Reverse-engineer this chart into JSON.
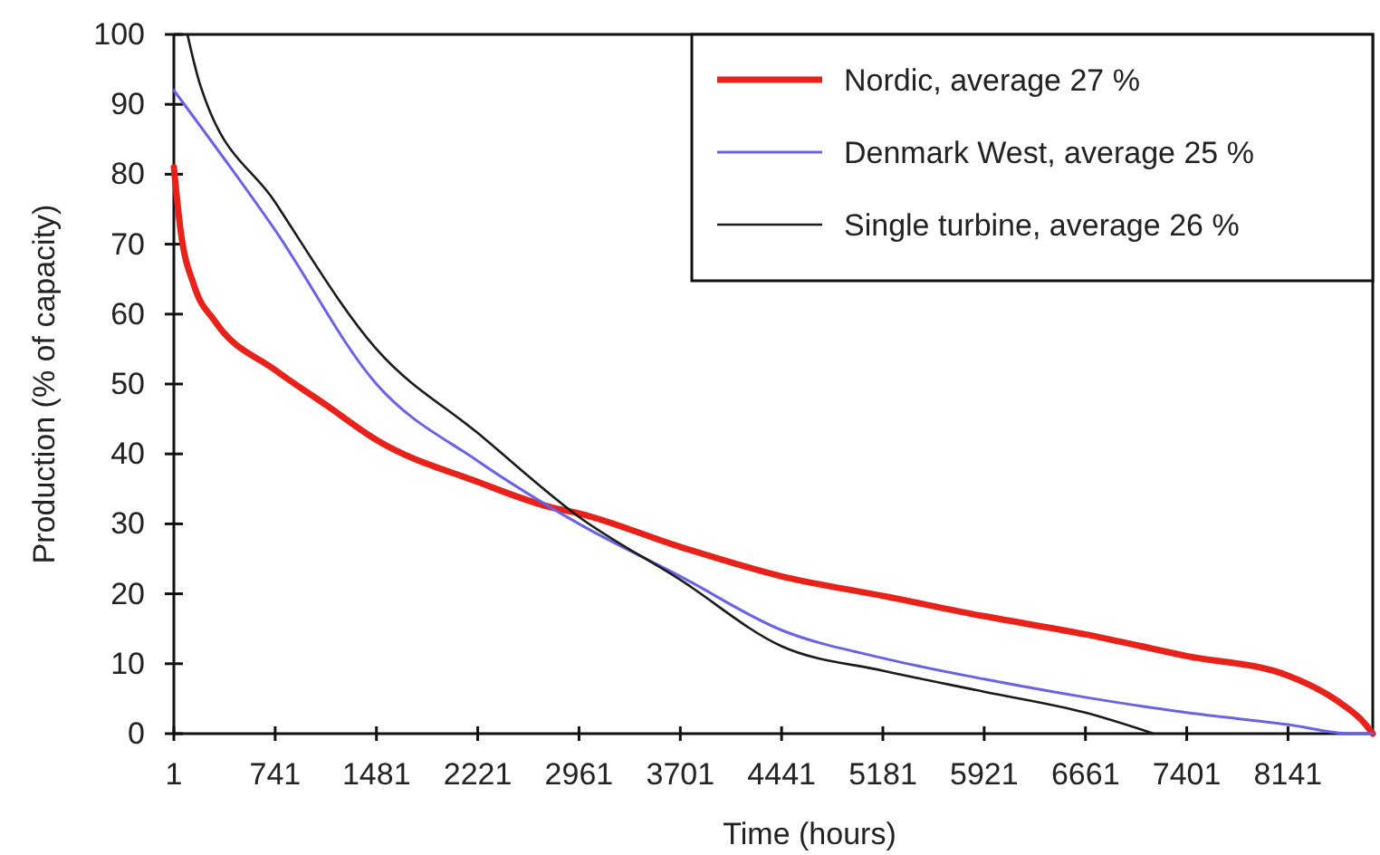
{
  "chart_data": {
    "type": "line",
    "xlabel": "Time (hours)",
    "ylabel": "Production (% of capacity)",
    "xlim": [
      1,
      8760
    ],
    "xticks": [
      1,
      741,
      1481,
      2221,
      2961,
      3701,
      4441,
      5181,
      5921,
      6661,
      7401,
      8141
    ],
    "ylim": [
      0,
      100
    ],
    "yticks": [
      0,
      10,
      20,
      30,
      40,
      50,
      60,
      70,
      80,
      90,
      100
    ],
    "legend": "top right",
    "grid": false,
    "series": [
      {
        "name": "Nordic, average 27 %",
        "color": "#e8221b",
        "x": [
          1,
          50,
          150,
          300,
          741,
          1113,
          1481,
          2221,
          2750,
          2961,
          3701,
          4441,
          5181,
          5921,
          6661,
          7401,
          8141,
          8500,
          8700,
          8760
        ],
        "values": [
          81,
          72,
          64,
          59,
          52,
          47,
          42,
          36,
          32.4,
          31.5,
          26.7,
          22.5,
          19.7,
          16.8,
          14.2,
          11.1,
          8.3,
          4.7,
          1.5,
          0
        ]
      },
      {
        "name": "Denmark West, average 25 %",
        "color": "#6a62e6",
        "x": [
          1,
          741,
          1481,
          2221,
          2961,
          3701,
          4441,
          5181,
          5921,
          6661,
          7401,
          8141,
          8600,
          8760
        ],
        "values": [
          92,
          72,
          50,
          39,
          30,
          22.5,
          14.8,
          10.8,
          7.8,
          5.2,
          3,
          1.3,
          0,
          0
        ]
      },
      {
        "name": "Single turbine, average 26 %",
        "color": "#1a1a1a",
        "x": [
          100,
          190,
          741,
          1481,
          2221,
          2961,
          3701,
          4441,
          5181,
          5921,
          6661,
          7160
        ],
        "values": [
          100,
          93,
          76,
          55,
          43,
          31,
          22,
          12.5,
          9,
          6,
          3,
          0
        ]
      }
    ]
  }
}
